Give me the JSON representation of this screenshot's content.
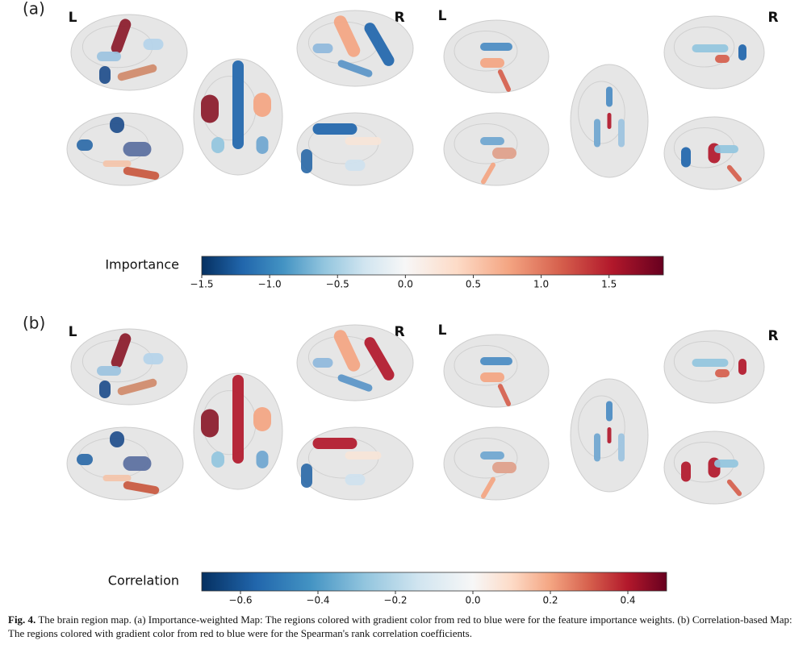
{
  "panels": [
    {
      "label": "(a)",
      "side_labels": [
        "L",
        "R",
        "L",
        "R"
      ],
      "colorbar": {
        "label": "Importance",
        "lim": [
          -1.5,
          1.9
        ],
        "ticks": [
          {
            "value": -1.5,
            "label": "−1.5"
          },
          {
            "value": -1.0,
            "label": "−1.0"
          },
          {
            "value": -0.5,
            "label": "−0.5"
          },
          {
            "value": 0.0,
            "label": "0.0"
          },
          0.5,
          {
            "value": 1.0,
            "label": "1.0"
          },
          1.5
        ]
      }
    },
    {
      "label": "(b)",
      "side_labels": [
        "L",
        "R",
        "L",
        "R"
      ],
      "colorbar": {
        "label": "Correlation",
        "lim": [
          -0.7,
          0.5
        ],
        "ticks": [
          {
            "value": -0.6,
            "label": "−0.6"
          },
          {
            "value": -0.4,
            "label": "−0.4"
          },
          {
            "value": -0.2,
            "label": "−0.2"
          },
          {
            "value": 0.0,
            "label": "0.0"
          },
          0.2,
          0.4
        ]
      }
    }
  ],
  "caption": {
    "label": "Fig. 4.",
    "text": "The brain region map. (a) Importance-weighted Map: The regions colored with gradient color from red to blue were for the feature importance weights. (b) Correlation-based Map: The regions colored with gradient color from red to blue were for the Spearman's rank correlation coefficients."
  }
}
